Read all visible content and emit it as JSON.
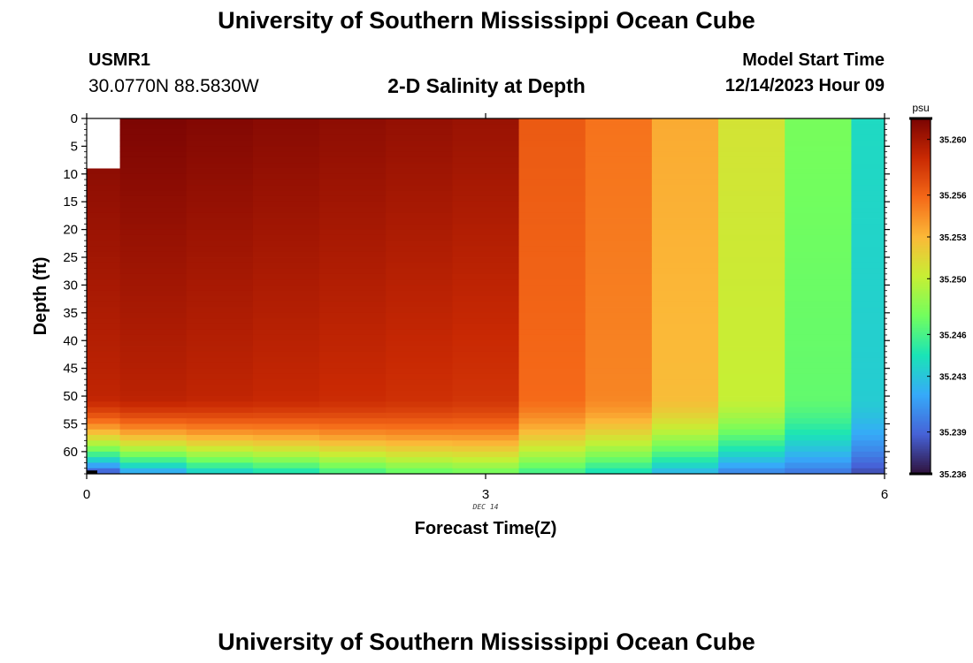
{
  "header": {
    "title": "University of Southern Mississippi Ocean Cube",
    "station": "USMR1",
    "coords": "30.0770N  88.5830W",
    "subtitle": "2-D Salinity at Depth",
    "run_label": "Model Start Time",
    "run_value": "12/14/2023 Hour 09"
  },
  "footer": {
    "title": "University of Southern Mississippi Ocean Cube"
  },
  "chart_data": {
    "type": "heatmap",
    "title": "2-D Salinity at Depth",
    "xlabel": "Forecast Time(Z)",
    "ylabel": "Depth (ft)",
    "date_label": "DEC 14",
    "xlim": [
      0,
      6
    ],
    "ylim": [
      0,
      64
    ],
    "x_ticks": [
      0,
      3,
      6
    ],
    "y_ticks": [
      0,
      5,
      10,
      15,
      20,
      25,
      30,
      35,
      40,
      45,
      50,
      55,
      60
    ],
    "colorbar": {
      "unit": "psu",
      "min": 35.236,
      "max": 35.2615,
      "ticks": [
        "35.260",
        "35.256",
        "35.253",
        "35.250",
        "35.246",
        "35.243",
        "35.239",
        "35.236"
      ]
    },
    "time_columns": [
      0,
      0.5,
      1,
      1.5,
      2,
      2.5,
      3,
      3.5,
      4,
      4.5,
      5,
      5.5,
      6
    ],
    "surface_salinity": [
      35.2612,
      35.2614,
      35.2612,
      35.261,
      35.2608,
      35.2606,
      35.2604,
      35.2565,
      35.2555,
      35.2535,
      35.2508,
      35.2475,
      35.244
    ],
    "bottom_salinity": [
      35.238,
      35.241,
      35.243,
      35.244,
      35.2455,
      35.2465,
      35.247,
      35.2455,
      35.244,
      35.242,
      35.24,
      35.2395,
      35.238
    ],
    "missing_cells": [
      {
        "time": 0,
        "depth_max": 9
      }
    ],
    "colors": {
      "scale": [
        "#30123b",
        "#4662d7",
        "#36aaf9",
        "#1ae4b6",
        "#72fe5e",
        "#c7ef34",
        "#fbb938",
        "#f56918",
        "#c92903",
        "#7a0403"
      ]
    }
  }
}
